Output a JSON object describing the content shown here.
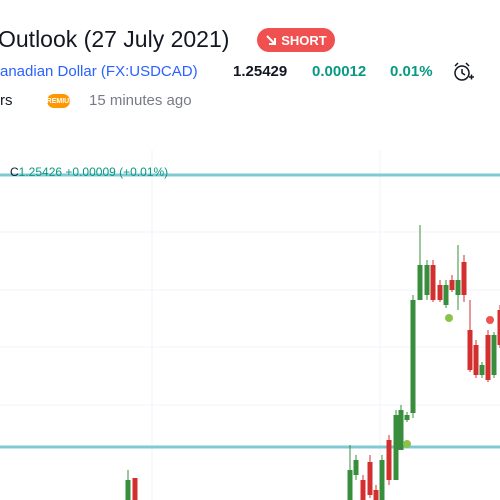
{
  "header": {
    "title": "Outlook (27 July 2021)",
    "badge": "SHORT",
    "symbol_name": "anadian Dollar",
    "symbol_code": "(FX:USDCAD)",
    "price": "1.25429",
    "change": "0.00012",
    "change_percent": "0.01%",
    "author_fragment": "rs",
    "author_badge": "PREMIUM",
    "published": "15 minutes ago"
  },
  "chart": {
    "legend_close_label": "C",
    "legend_close": "1.25426",
    "legend_change": "+0.00009",
    "legend_change_percent": "(+0.01%)"
  }
}
